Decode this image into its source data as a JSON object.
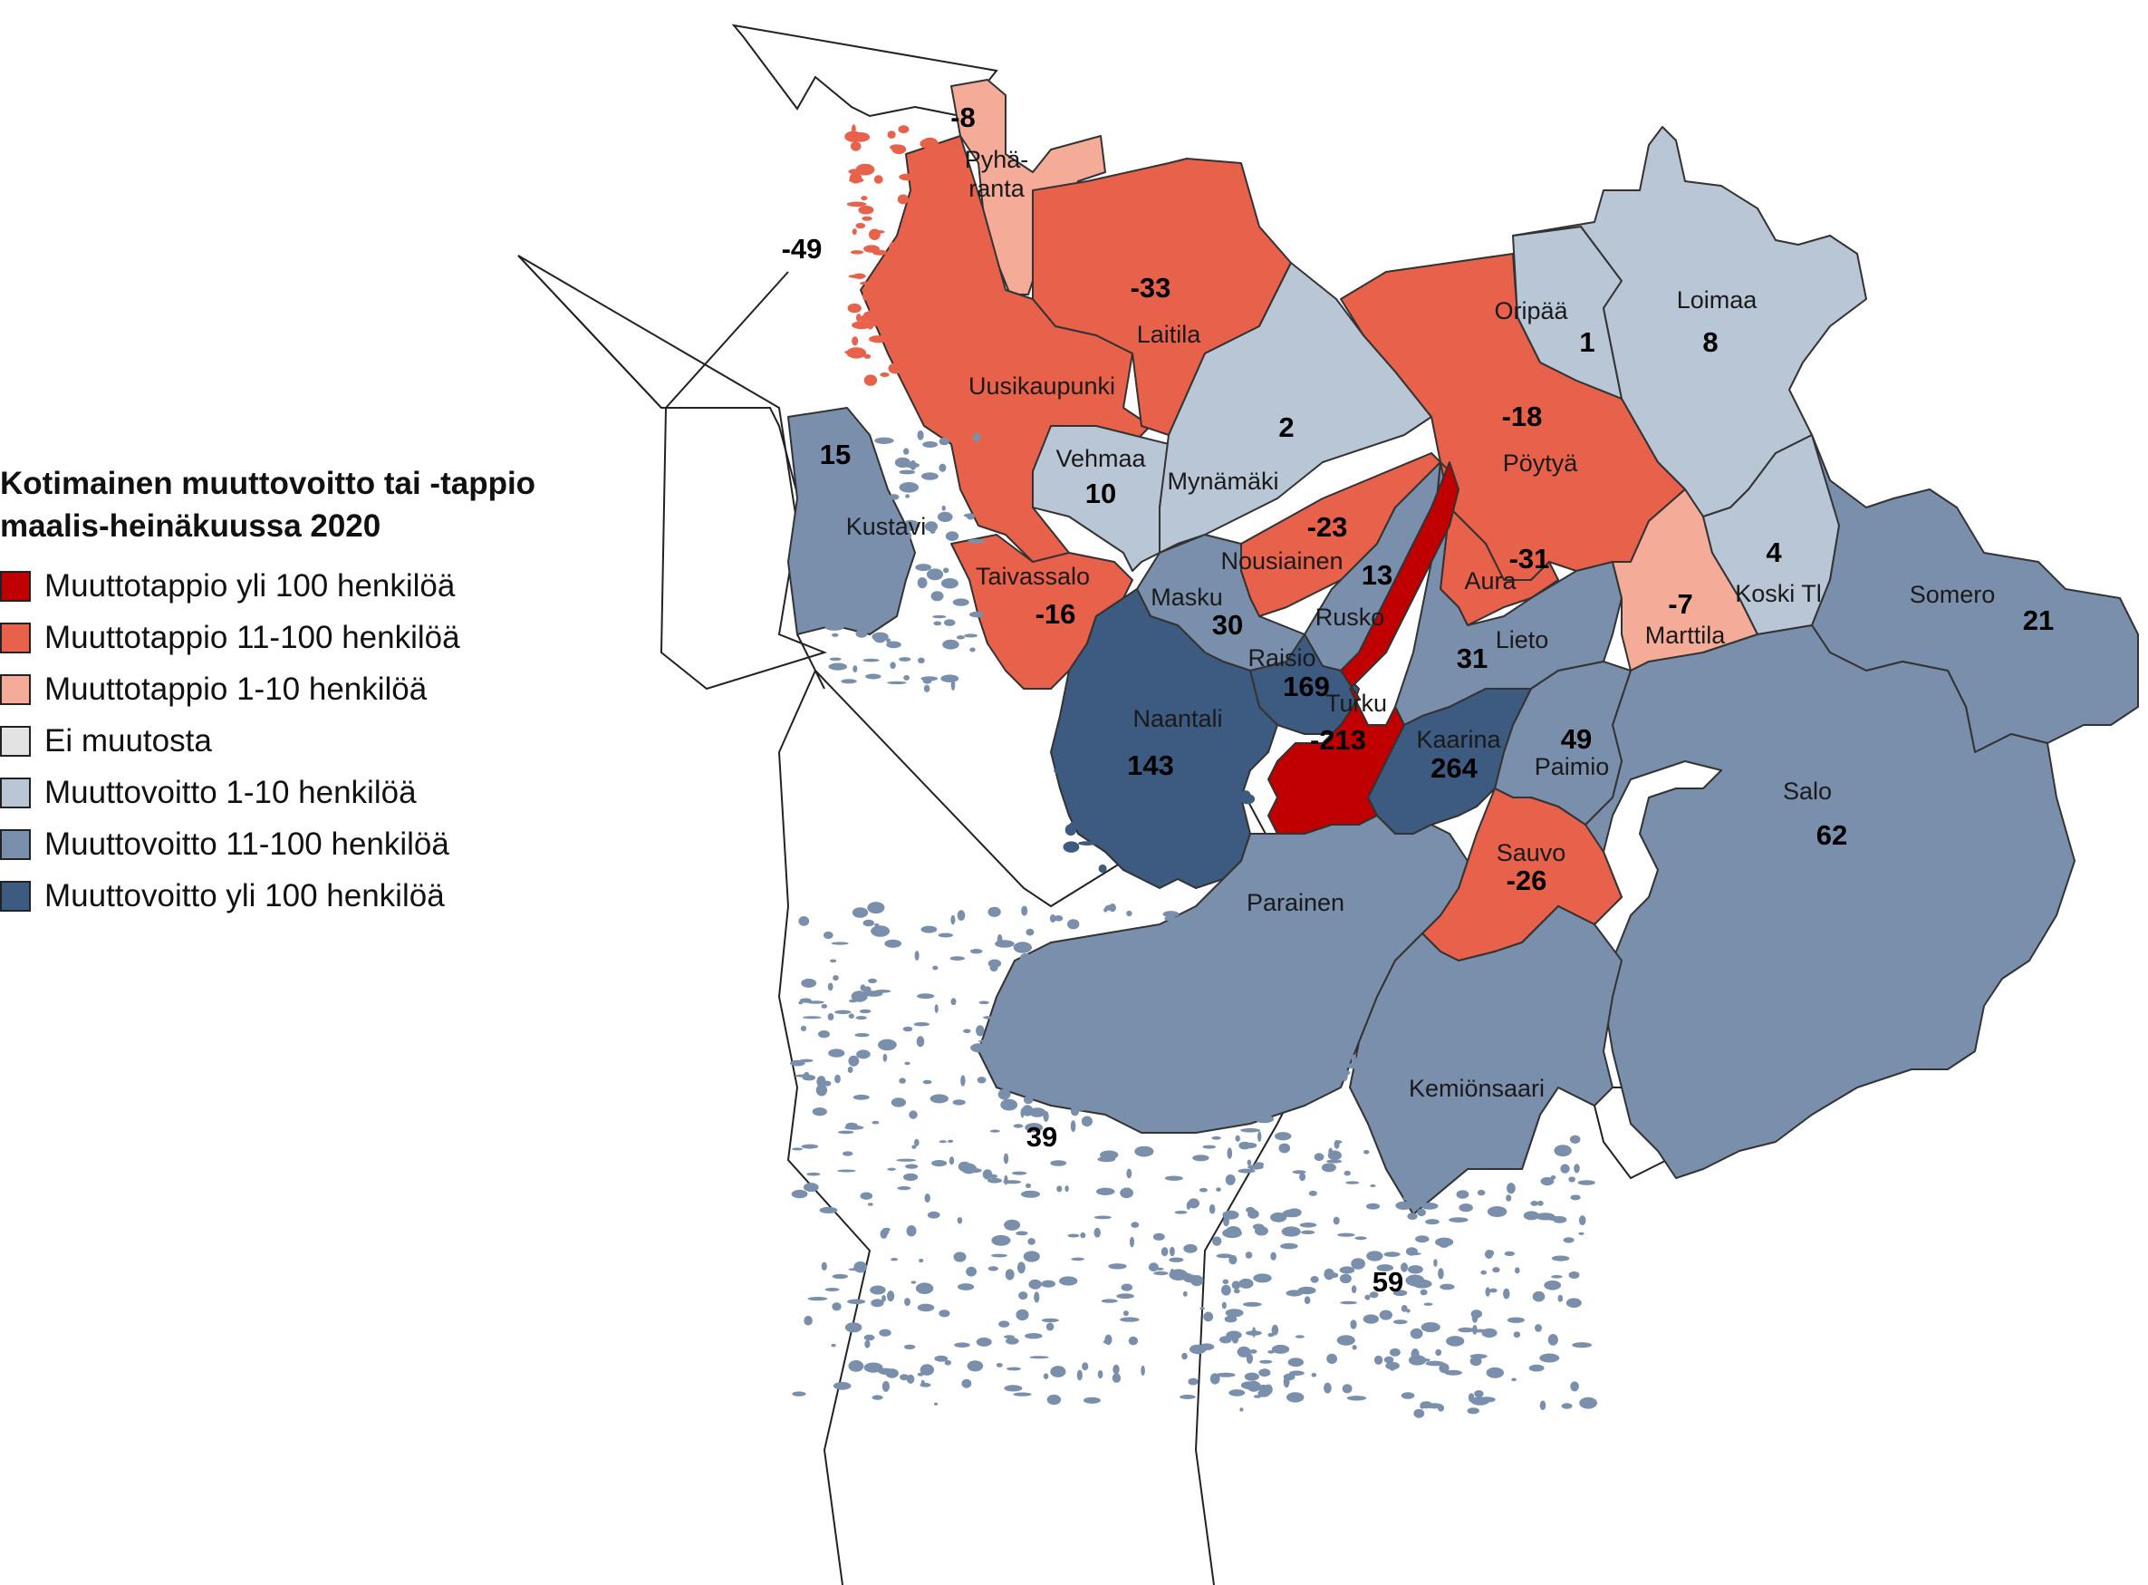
{
  "legend": {
    "title_line1": "Kotimainen muuttovoitto tai -tappio",
    "title_line2": "maalis-heinäkuussa 2020",
    "items": [
      {
        "label": "Muuttotappio yli 100 henkilöä",
        "color": "#c00000"
      },
      {
        "label": "Muuttotappio 11-100 henkilöä",
        "color": "#e8614a"
      },
      {
        "label": "Muuttotappio 1-10 henkilöä",
        "color": "#f4ab98"
      },
      {
        "label": "Ei muutosta",
        "color": "#e3e3e3"
      },
      {
        "label": "Muuttovoitto 1-10 henkilöä",
        "color": "#b8c6d6"
      },
      {
        "label": "Muuttovoitto 11-100 henkilöä",
        "color": "#7a8fac"
      },
      {
        "label": "Muuttovoitto yli 100 henkilöä",
        "color": "#3d5a80"
      }
    ]
  },
  "municipalities": [
    {
      "name": "Pyhäranta",
      "name_lines": [
        "Pyhä-",
        "ranta"
      ],
      "value": "-8",
      "class": 2
    },
    {
      "name": "Uusikaupunki",
      "name_lines": [
        "Uusikaupunki"
      ],
      "value": "-49",
      "class": 1
    },
    {
      "name": "Laitila",
      "name_lines": [
        "Laitila"
      ],
      "value": "-33",
      "class": 1
    },
    {
      "name": "Vehmaa",
      "name_lines": [
        "Vehmaa"
      ],
      "value": "10",
      "class": 4
    },
    {
      "name": "Mynämäki",
      "name_lines": [
        "Mynämäki"
      ],
      "value": "2",
      "class": 4
    },
    {
      "name": "Oripää",
      "name_lines": [
        "Oripää"
      ],
      "value": "1",
      "class": 4
    },
    {
      "name": "Loimaa",
      "name_lines": [
        "Loimaa"
      ],
      "value": "8",
      "class": 4
    },
    {
      "name": "Pöytyä",
      "name_lines": [
        "Pöytyä"
      ],
      "value": "-18",
      "class": 1
    },
    {
      "name": "Kustavi",
      "name_lines": [
        "Kustavi"
      ],
      "value": "15",
      "class": 5
    },
    {
      "name": "Taivassalo",
      "name_lines": [
        "Taivassalo"
      ],
      "value": "-16",
      "class": 1
    },
    {
      "name": "Nousiainen",
      "name_lines": [
        "Nousiainen"
      ],
      "value": "-23",
      "class": 1
    },
    {
      "name": "Masku",
      "name_lines": [
        "Masku"
      ],
      "value": "30",
      "class": 5
    },
    {
      "name": "Rusko",
      "name_lines": [
        "Rusko"
      ],
      "value": "13",
      "class": 5
    },
    {
      "name": "Aura",
      "name_lines": [
        "Aura"
      ],
      "value": "-31",
      "class": 1
    },
    {
      "name": "Lieto",
      "name_lines": [
        "Lieto"
      ],
      "value": "31",
      "class": 5
    },
    {
      "name": "Marttila",
      "name_lines": [
        "Marttila"
      ],
      "value": "-7",
      "class": 2
    },
    {
      "name": "Koski Tl",
      "name_lines": [
        "Koski Tl"
      ],
      "value": "4",
      "class": 4
    },
    {
      "name": "Somero",
      "name_lines": [
        "Somero"
      ],
      "value": "21",
      "class": 5
    },
    {
      "name": "Raisio",
      "name_lines": [
        "Raisio"
      ],
      "value": "169",
      "class": 6
    },
    {
      "name": "Naantali",
      "name_lines": [
        "Naantali"
      ],
      "value": "143",
      "class": 6
    },
    {
      "name": "Turku",
      "name_lines": [
        "Turku"
      ],
      "value": "-213",
      "class": 0
    },
    {
      "name": "Kaarina",
      "name_lines": [
        "Kaarina"
      ],
      "value": "264",
      "class": 6
    },
    {
      "name": "Paimio",
      "name_lines": [
        "Paimio"
      ],
      "value": "49",
      "class": 5
    },
    {
      "name": "Sauvo",
      "name_lines": [
        "Sauvo"
      ],
      "value": "-26",
      "class": 1
    },
    {
      "name": "Salo",
      "name_lines": [
        "Salo"
      ],
      "value": "62",
      "class": 5
    },
    {
      "name": "Parainen",
      "name_lines": [
        "Parainen"
      ],
      "value": "39",
      "class": 5
    },
    {
      "name": "Kemiönsaari",
      "name_lines": [
        "Kemiönsaari"
      ],
      "value": "59",
      "class": 5
    }
  ]
}
